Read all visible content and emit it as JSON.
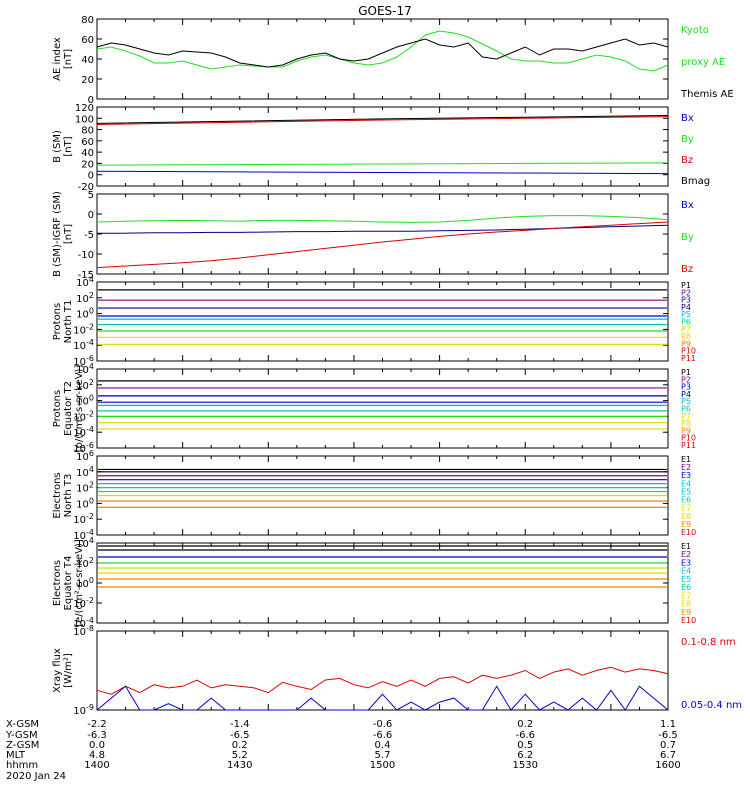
{
  "title": "GOES-17",
  "colors": {
    "black": "#000000",
    "red": "#dd0000",
    "green": "#22dd22",
    "blue": "#0000cc",
    "cyan": "#00bbdd",
    "teal": "#00ccaa",
    "yellow": "#dddd00",
    "orange": "#ee8800",
    "purple": "#880088",
    "navy": "#000088"
  },
  "chart_data": [
    {
      "id": "ae",
      "type": "line",
      "ylabel": [
        "AE index",
        "[nT]"
      ],
      "ylim": [
        0,
        80
      ],
      "yticks": [
        "0",
        "20",
        "40",
        "60",
        "80"
      ],
      "legend": [
        "Kyoto",
        "proxy AE",
        "Themis AE"
      ],
      "x_minutes": [
        0,
        5,
        10,
        15,
        20,
        25,
        30,
        35,
        40,
        45,
        50,
        55,
        60,
        65,
        70,
        75,
        80,
        85,
        90,
        95,
        100,
        105,
        110,
        115,
        120,
        125,
        130,
        135,
        140,
        145,
        150,
        155,
        160,
        165,
        170,
        175,
        180,
        185,
        190,
        195,
        200
      ],
      "series": [
        {
          "name": "proxy AE",
          "values": [
            50,
            52,
            48,
            43,
            36,
            36,
            38,
            34,
            30,
            32,
            34,
            33,
            32,
            32,
            38,
            42,
            44,
            40,
            36,
            34,
            36,
            42,
            52,
            64,
            68,
            66,
            62,
            55,
            48,
            40,
            38,
            38,
            36,
            36,
            40,
            44,
            42,
            38,
            30,
            28,
            34
          ]
        },
        {
          "name": "Themis AE",
          "values": [
            52,
            56,
            54,
            50,
            46,
            44,
            48,
            47,
            46,
            42,
            36,
            34,
            32,
            34,
            40,
            44,
            46,
            40,
            38,
            40,
            46,
            52,
            56,
            60,
            54,
            52,
            56,
            42,
            40,
            46,
            52,
            44,
            50,
            50,
            48,
            52,
            56,
            60,
            54,
            56,
            52
          ]
        }
      ]
    },
    {
      "id": "bsm",
      "type": "line",
      "ylabel": [
        "B (SM)",
        "[nT]"
      ],
      "ylim": [
        -20,
        120
      ],
      "yticks": [
        "-20",
        "0",
        "20",
        "40",
        "60",
        "80",
        "100",
        "120"
      ],
      "legend": [
        "Bx",
        "By",
        "Bz",
        "Bmag"
      ],
      "x_minutes": [
        0,
        50,
        100,
        150,
        200
      ],
      "series": [
        {
          "name": "Bx",
          "values": [
            6,
            5,
            4,
            3,
            2
          ]
        },
        {
          "name": "By",
          "values": [
            17,
            18,
            19,
            20,
            21
          ]
        },
        {
          "name": "Bz",
          "values": [
            89,
            93,
            97,
            100,
            103
          ]
        },
        {
          "name": "Bmag",
          "values": [
            91,
            95,
            99,
            102,
            105
          ]
        }
      ]
    },
    {
      "id": "bigrf",
      "type": "line",
      "ylabel": [
        "B (SM)-IGRF (SM)",
        "[nT]"
      ],
      "ylim": [
        -15,
        5
      ],
      "yticks": [
        "-15",
        "-10",
        "-5",
        "0",
        "5"
      ],
      "legend": [
        "Bx",
        "By",
        "Bz"
      ],
      "x_minutes": [
        0,
        10,
        20,
        30,
        40,
        50,
        60,
        70,
        80,
        90,
        100,
        110,
        120,
        130,
        140,
        150,
        160,
        170,
        180,
        190,
        200
      ],
      "series": [
        {
          "name": "Bx",
          "values": [
            -4.8,
            -4.8,
            -4.7,
            -4.7,
            -4.6,
            -4.6,
            -4.5,
            -4.4,
            -4.4,
            -4.3,
            -4.3,
            -4.3,
            -4.2,
            -4.1,
            -4.0,
            -3.8,
            -3.6,
            -3.4,
            -3.2,
            -3.0,
            -2.8
          ]
        },
        {
          "name": "By",
          "values": [
            -2.0,
            -1.8,
            -1.7,
            -1.6,
            -1.7,
            -1.8,
            -1.6,
            -1.6,
            -1.7,
            -1.8,
            -2.0,
            -2.1,
            -2.0,
            -1.6,
            -1.0,
            -0.6,
            -0.4,
            -0.4,
            -0.6,
            -0.9,
            -1.4
          ]
        },
        {
          "name": "Bz",
          "values": [
            -13.4,
            -13.0,
            -12.6,
            -12.2,
            -11.7,
            -11.0,
            -10.2,
            -9.4,
            -8.6,
            -7.8,
            -7.0,
            -6.3,
            -5.6,
            -5.0,
            -4.5,
            -4.1,
            -3.6,
            -3.2,
            -2.8,
            -2.4,
            -2.0
          ]
        }
      ]
    },
    {
      "id": "pn",
      "type": "line",
      "yscale": "log",
      "ylabel": [
        "Protons",
        "North T1"
      ],
      "ylog_range": [
        -6,
        4
      ],
      "yticks": [
        "10^-6",
        "10^-4",
        "10^-2",
        "10^0",
        "10^2",
        "10^4"
      ],
      "legend": [
        "P1",
        "P2",
        "P3",
        "P4",
        "P5",
        "P6",
        "P7",
        "P8",
        "P9",
        "P10",
        "P11"
      ],
      "series": [
        {
          "name": "P1",
          "log10": 3.0
        },
        {
          "name": "P2",
          "log10": 1.7
        },
        {
          "name": "P3",
          "log10": 0.7
        },
        {
          "name": "P4",
          "log10": -0.3
        },
        {
          "name": "P5",
          "log10": -0.7
        },
        {
          "name": "P6",
          "log10": -1.4
        },
        {
          "name": "P7",
          "log10": -2.2
        },
        {
          "name": "P8",
          "log10": -3.0
        },
        {
          "name": "P9",
          "log10": -3.9
        }
      ]
    },
    {
      "id": "pe",
      "type": "line",
      "yscale": "log",
      "ylabel": [
        "Protons",
        "Equator T2",
        "[p/(cm²-s-sr-keV)]"
      ],
      "ylog_range": [
        -6,
        4
      ],
      "yticks": [
        "10^-6",
        "10^-4",
        "10^-2",
        "10^0",
        "10^2",
        "10^4"
      ],
      "legend": [
        "P1",
        "P2",
        "P3",
        "P4",
        "P5",
        "P6",
        "P7",
        "P8",
        "P9",
        "P10",
        "P11"
      ],
      "series": [
        {
          "name": "P1",
          "log10": 2.5
        },
        {
          "name": "P2",
          "log10": 1.6
        },
        {
          "name": "P3",
          "log10": 0.6
        },
        {
          "name": "P4",
          "log10": -0.2
        },
        {
          "name": "P5",
          "log10": -0.6
        },
        {
          "name": "P6",
          "log10": -1.3
        },
        {
          "name": "P7",
          "log10": -2.0
        },
        {
          "name": "P8",
          "log10": -2.8
        },
        {
          "name": "P9",
          "log10": -3.6
        }
      ]
    },
    {
      "id": "en",
      "type": "line",
      "yscale": "log",
      "ylabel": [
        "Electrons",
        "North T3"
      ],
      "ylog_range": [
        -4,
        6
      ],
      "yticks": [
        "10^-4",
        "10^-2",
        "10^0",
        "10^2",
        "10^4",
        "10^6"
      ],
      "legend": [
        "E1",
        "E2",
        "E3",
        "E4",
        "E5",
        "E6",
        "E7",
        "E8",
        "E9",
        "E10"
      ],
      "series": [
        {
          "name": "E1",
          "log10": 4.3
        },
        {
          "name": "E2",
          "log10": 4.0
        },
        {
          "name": "E3",
          "log10": 3.5
        },
        {
          "name": "E4",
          "log10": 3.0
        },
        {
          "name": "E5",
          "log10": 2.5
        },
        {
          "name": "E6",
          "log10": 2.0
        },
        {
          "name": "E7",
          "log10": 1.5
        },
        {
          "name": "E8",
          "log10": 1.0
        },
        {
          "name": "E9",
          "log10": 0.3
        },
        {
          "name": "E10",
          "log10": -0.5
        }
      ]
    },
    {
      "id": "ee",
      "type": "line",
      "yscale": "log",
      "ylabel": [
        "Electrons",
        "Equator T4",
        "[e/(cm²-s-sr-keV)]"
      ],
      "ylog_range": [
        -4,
        4
      ],
      "yticks": [
        "10^-4",
        "10^-2",
        "10^0",
        "10^2",
        "10^4"
      ],
      "legend": [
        "E1",
        "E2",
        "E3",
        "E4",
        "E5",
        "E6",
        "E7",
        "E8",
        "E9",
        "E10"
      ],
      "series": [
        {
          "name": "E1",
          "log10": 3.7
        },
        {
          "name": "E2",
          "log10": 3.3
        },
        {
          "name": "E3",
          "log10": 2.6
        },
        {
          "name": "E4",
          "log10": 2.0
        },
        {
          "name": "E5",
          "log10": 1.5
        },
        {
          "name": "E6",
          "log10": 1.0
        },
        {
          "name": "E7",
          "log10": 0.4
        },
        {
          "name": "E8",
          "log10": -0.4
        }
      ]
    },
    {
      "id": "xray",
      "type": "line",
      "yscale": "log",
      "ylabel": [
        "Xray flux",
        "[W/m²]"
      ],
      "ylog_range": [
        -9,
        -8
      ],
      "yticks": [
        "10^-9",
        "10^-8"
      ],
      "legend": [
        "0.1-0.8 nm",
        "0.05-0.4 nm"
      ],
      "x_minutes": [
        0,
        5,
        10,
        15,
        20,
        25,
        30,
        35,
        40,
        45,
        50,
        55,
        60,
        65,
        70,
        75,
        80,
        85,
        90,
        95,
        100,
        105,
        110,
        115,
        120,
        125,
        130,
        135,
        140,
        145,
        150,
        155,
        160,
        165,
        170,
        175,
        180,
        185,
        190,
        195,
        200
      ],
      "series": [
        {
          "name": "0.1-0.8 nm",
          "log10": [
            -8.75,
            -8.8,
            -8.7,
            -8.78,
            -8.68,
            -8.72,
            -8.7,
            -8.62,
            -8.72,
            -8.68,
            -8.7,
            -8.72,
            -8.78,
            -8.65,
            -8.7,
            -8.74,
            -8.62,
            -8.6,
            -8.68,
            -8.72,
            -8.64,
            -8.7,
            -8.62,
            -8.7,
            -8.6,
            -8.58,
            -8.66,
            -8.56,
            -8.6,
            -8.56,
            -8.5,
            -8.6,
            -8.52,
            -8.48,
            -8.56,
            -8.5,
            -8.46,
            -8.52,
            -8.48,
            -8.5,
            -8.54
          ]
        },
        {
          "name": "0.05-0.4 nm",
          "log10": [
            -9.0,
            -8.85,
            -8.7,
            -9.0,
            -9.0,
            -8.92,
            -9.0,
            -9.0,
            -8.85,
            -9.0,
            -9.0,
            -9.0,
            -9.0,
            -9.0,
            -9.0,
            -8.85,
            -9.0,
            -9.0,
            -9.0,
            -9.0,
            -8.8,
            -9.0,
            -8.9,
            -9.0,
            -8.9,
            -8.85,
            -9.0,
            -9.0,
            -8.7,
            -9.0,
            -8.8,
            -9.0,
            -8.9,
            -9.0,
            -8.85,
            -9.0,
            -8.75,
            -9.0,
            -8.7,
            -8.85,
            -9.0
          ]
        }
      ]
    }
  ],
  "footer": {
    "row_labels": [
      "X-GSM",
      "Y-GSM",
      "Z-GSM",
      "MLT",
      "hhmm",
      "2020 Jan 24"
    ],
    "columns": [
      [
        "-2.2",
        "-6.3",
        "0.0",
        "4.8",
        "1400"
      ],
      [
        "-1.4",
        "-6.5",
        "0.2",
        "5.2",
        "1430"
      ],
      [
        "-0.6",
        "-6.6",
        "0.4",
        "5.7",
        "1500"
      ],
      [
        "0.2",
        "-6.6",
        "0.5",
        "6.2",
        "1530"
      ],
      [
        "1.1",
        "-6.5",
        "0.7",
        "6.7",
        "1600"
      ]
    ]
  }
}
